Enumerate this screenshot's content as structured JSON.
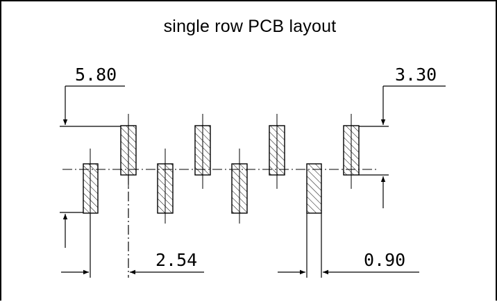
{
  "diagram": {
    "title": "single row   PCB layout",
    "dimensions": {
      "top_left": "5.80",
      "top_right": "3.30",
      "bottom_left": "2.54",
      "bottom_right": "0.90"
    },
    "pad_count": 8,
    "line_color": "#000000"
  }
}
